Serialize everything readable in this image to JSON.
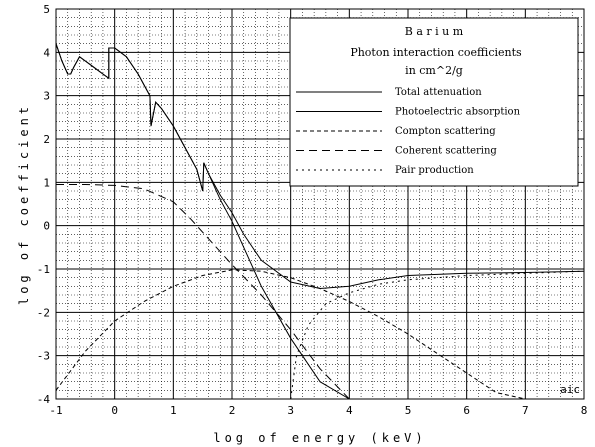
{
  "chart_data": {
    "type": "line",
    "legend": {
      "element": "B a r i u m",
      "heading": "Photon interaction coefficients",
      "units": "in cm^2/g",
      "placement": "top-right"
    },
    "xlabel": "log  of  energy  (keV)",
    "ylabel": "log  of  coefficient",
    "xlim": [
      -1,
      8
    ],
    "ylim": [
      -4,
      5
    ],
    "xticks": [
      "-1",
      "0",
      "1",
      "2",
      "3",
      "4",
      "5",
      "6",
      "7",
      "8"
    ],
    "yticks": [
      "-4",
      "-3",
      "-2",
      "-1",
      "0",
      "1",
      "2",
      "3",
      "4",
      "5"
    ],
    "grid": true,
    "corner_label": "aic",
    "series": [
      {
        "name": "Total attenuation",
        "dash": "",
        "x": [
          -1.0,
          -0.9,
          -0.8,
          -0.75,
          -0.7,
          -0.6,
          -0.5,
          -0.4,
          -0.3,
          -0.2,
          -0.1,
          -0.1,
          0.0,
          0.2,
          0.4,
          0.6,
          0.62,
          0.7,
          0.8,
          1.0,
          1.2,
          1.4,
          1.5,
          1.52,
          1.6,
          1.8,
          2.0,
          2.2,
          2.5,
          3.0,
          3.5,
          4.0,
          4.5,
          5.0,
          6.0,
          7.0,
          8.0
        ],
        "y": [
          4.2,
          3.8,
          3.5,
          3.5,
          3.65,
          3.9,
          3.8,
          3.7,
          3.6,
          3.5,
          3.4,
          4.1,
          4.1,
          3.9,
          3.5,
          3.0,
          2.3,
          2.85,
          2.7,
          2.3,
          1.8,
          1.3,
          0.8,
          1.45,
          1.2,
          0.7,
          0.3,
          -0.2,
          -0.8,
          -1.3,
          -1.45,
          -1.4,
          -1.25,
          -1.15,
          -1.1,
          -1.08,
          -1.05
        ]
      },
      {
        "name": "Photoelectric absorption",
        "dash": "",
        "x": [
          -1.0,
          -0.9,
          -0.8,
          -0.75,
          -0.7,
          -0.6,
          -0.5,
          -0.4,
          -0.3,
          -0.2,
          -0.1,
          -0.1,
          0.0,
          0.2,
          0.4,
          0.6,
          0.62,
          0.7,
          0.8,
          1.0,
          1.2,
          1.4,
          1.5,
          1.52,
          1.6,
          1.8,
          2.0,
          2.2,
          2.5,
          3.0,
          3.5,
          4.0
        ],
        "y": [
          4.2,
          3.8,
          3.5,
          3.5,
          3.65,
          3.9,
          3.8,
          3.7,
          3.6,
          3.5,
          3.4,
          4.1,
          4.1,
          3.9,
          3.5,
          3.0,
          2.3,
          2.85,
          2.7,
          2.3,
          1.8,
          1.3,
          0.8,
          1.45,
          1.2,
          0.6,
          0.1,
          -0.5,
          -1.4,
          -2.6,
          -3.6,
          -4.4
        ]
      },
      {
        "name": "Compton scattering",
        "dash": "4 3",
        "x": [
          -1.0,
          -0.5,
          0.0,
          0.5,
          1.0,
          1.5,
          2.0,
          2.5,
          3.0,
          3.5,
          4.0,
          4.5,
          5.0,
          5.5,
          6.0,
          6.5,
          7.0
        ],
        "y": [
          -3.8,
          -2.9,
          -2.2,
          -1.75,
          -1.4,
          -1.15,
          -1.02,
          -1.05,
          -1.2,
          -1.45,
          -1.75,
          -2.1,
          -2.5,
          -2.95,
          -3.4,
          -3.85,
          -4.3
        ]
      },
      {
        "name": "Coherent scattering",
        "dash": "8 5",
        "x": [
          -1.0,
          -0.5,
          0.0,
          0.5,
          1.0,
          1.3,
          1.6,
          2.0,
          2.5,
          3.0,
          3.5,
          4.0
        ],
        "y": [
          0.95,
          0.95,
          0.93,
          0.85,
          0.55,
          0.15,
          -0.3,
          -0.9,
          -1.6,
          -2.4,
          -3.3,
          -4.2
        ]
      },
      {
        "name": "Pair production",
        "dash": "2 4",
        "x": [
          3.0,
          3.1,
          3.3,
          3.6,
          4.0,
          4.5,
          5.0,
          6.0,
          7.0,
          8.0
        ],
        "y": [
          -4.0,
          -3.0,
          -2.3,
          -1.8,
          -1.55,
          -1.35,
          -1.25,
          -1.15,
          -1.1,
          -1.05
        ]
      }
    ]
  }
}
